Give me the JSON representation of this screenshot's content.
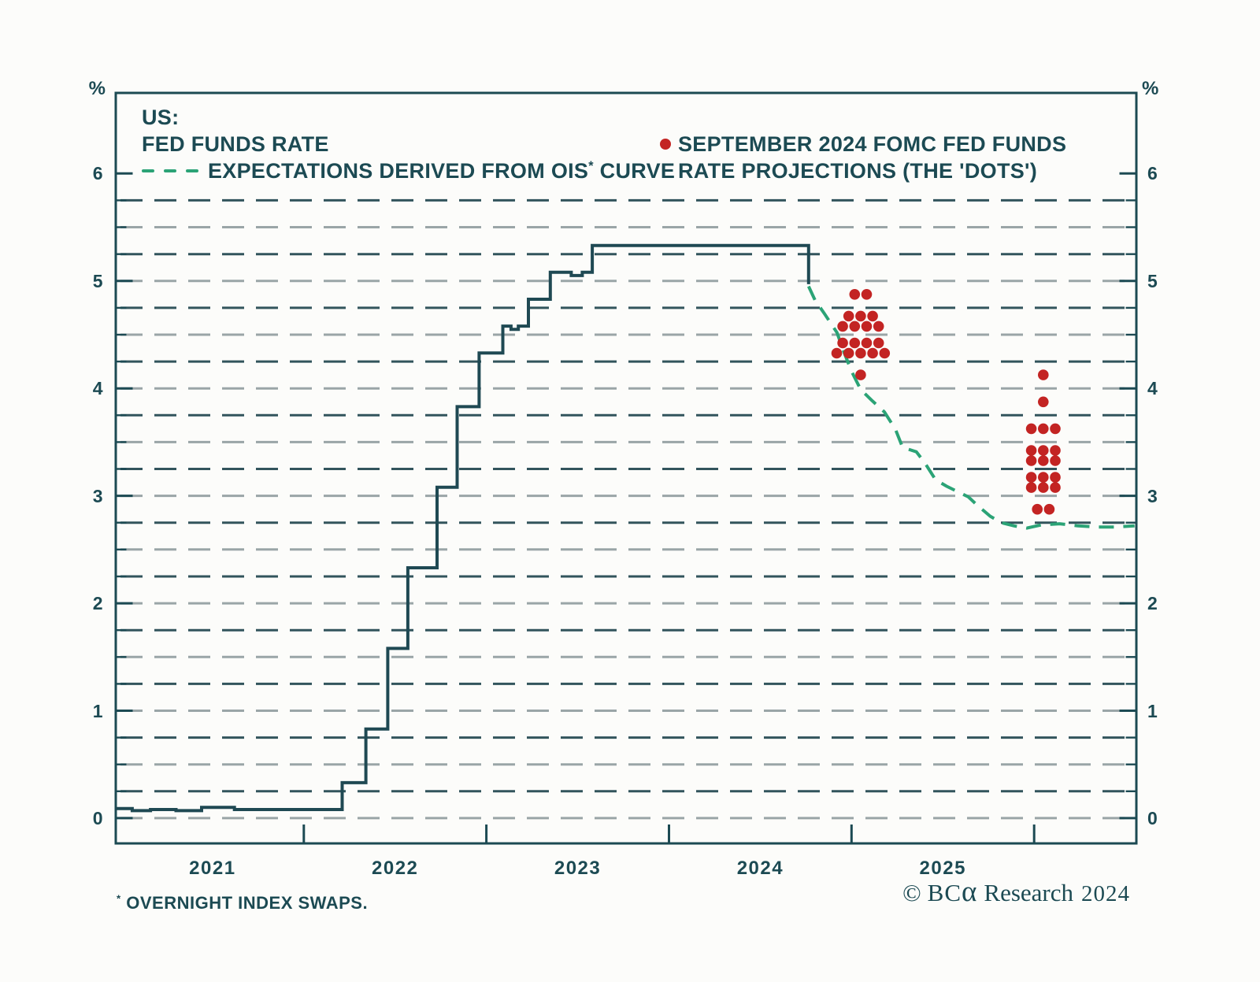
{
  "legend": {
    "region": "US:",
    "series_fed_funds": "FED FUNDS RATE",
    "series_ois_prefix": "EXPECTATIONS DERIVED FROM OIS",
    "series_ois_sup": "*",
    "series_ois_suffix": " CURVE",
    "dots_line1": "SEPTEMBER 2024 FOMC FED FUNDS",
    "dots_line2": "RATE PROJECTIONS (THE 'DOTS')"
  },
  "footnote": {
    "sup": "*",
    "text": " OVERNIGHT INDEX SWAPS."
  },
  "copyright": {
    "symbol": "©",
    "brand_bc": "BC",
    "brand_alpha": "α",
    "text": "Research",
    "year": "2024"
  },
  "colors": {
    "text": "#1c4a53",
    "frame": "#1c4a53",
    "step": "#1f4953",
    "ois": "#2ba376",
    "dots": "#c32423",
    "grid_light": "#9aa5a7",
    "grid_dark": "#32545c",
    "background": "#fcfcfa"
  },
  "chart_data": {
    "type": "line",
    "title": "US: Fed funds rate, OIS-derived expectations and September 2024 FOMC dot projections",
    "unit": "%",
    "xlabel": "",
    "ylabel": "%",
    "xlim": [
      2020.97,
      2026.56
    ],
    "ylim": [
      -0.235,
      6.75
    ],
    "grid": {
      "min": 0,
      "max": 5.75,
      "step": 0.25
    },
    "legend_position": "top",
    "y_label_values": [
      0,
      1,
      2,
      3,
      4,
      5,
      6
    ],
    "y_tick_labels": [
      "0",
      "1",
      "2",
      "3",
      "4",
      "5",
      "6"
    ],
    "x_tick_years": [
      2022,
      2023,
      2024,
      2025,
      2026
    ],
    "x_label_years": [
      2021.5,
      2022.5,
      2023.5,
      2024.5,
      2025.5
    ],
    "x_tick_labels": [
      "2021",
      "2022",
      "2023",
      "2024",
      "2025"
    ],
    "series": [
      {
        "name": "FED FUNDS RATE",
        "style": "step",
        "color": "#1f4953",
        "points": [
          [
            2020.97,
            0.09
          ],
          [
            2021.06,
            0.07
          ],
          [
            2021.16,
            0.08
          ],
          [
            2021.3,
            0.07
          ],
          [
            2021.44,
            0.1
          ],
          [
            2021.62,
            0.08
          ],
          [
            2022.21,
            0.33
          ],
          [
            2022.34,
            0.83
          ],
          [
            2022.46,
            1.58
          ],
          [
            2022.57,
            2.33
          ],
          [
            2022.73,
            3.08
          ],
          [
            2022.84,
            3.83
          ],
          [
            2022.96,
            4.33
          ],
          [
            2023.09,
            4.58
          ],
          [
            2023.135,
            4.55
          ],
          [
            2023.175,
            4.58
          ],
          [
            2023.23,
            4.83
          ],
          [
            2023.35,
            5.08
          ],
          [
            2023.465,
            5.05
          ],
          [
            2023.525,
            5.08
          ],
          [
            2023.58,
            5.33
          ],
          [
            2024.765,
            4.97
          ]
        ]
      },
      {
        "name": "EXPECTATIONS DERIVED FROM OIS* CURVE",
        "style": "dashed",
        "color": "#2ba376",
        "points": [
          [
            2024.765,
            4.95
          ],
          [
            2024.8,
            4.82
          ],
          [
            2024.85,
            4.7
          ],
          [
            2024.92,
            4.52
          ],
          [
            2024.96,
            4.33
          ],
          [
            2025.0,
            4.16
          ],
          [
            2025.05,
            3.99
          ],
          [
            2025.11,
            3.89
          ],
          [
            2025.18,
            3.78
          ],
          [
            2025.24,
            3.62
          ],
          [
            2025.28,
            3.45
          ],
          [
            2025.355,
            3.41
          ],
          [
            2025.4,
            3.31
          ],
          [
            2025.46,
            3.15
          ],
          [
            2025.52,
            3.09
          ],
          [
            2025.58,
            3.04
          ],
          [
            2025.64,
            2.99
          ],
          [
            2025.69,
            2.91
          ],
          [
            2025.76,
            2.81
          ],
          [
            2025.82,
            2.75
          ],
          [
            2025.89,
            2.72
          ],
          [
            2025.96,
            2.7
          ],
          [
            2026.04,
            2.73
          ],
          [
            2026.14,
            2.74
          ],
          [
            2026.24,
            2.72
          ],
          [
            2026.35,
            2.71
          ],
          [
            2026.45,
            2.71
          ],
          [
            2026.55,
            2.72
          ]
        ]
      },
      {
        "name": "SEPTEMBER 2024 FOMC FED FUNDS RATE PROJECTIONS (THE 'DOTS')",
        "style": "dots",
        "color": "#c32423",
        "clusters": [
          {
            "projection_year": "end-2024",
            "x_year": 2025.05,
            "dots": [
              {
                "rate": 4.875,
                "count": 2
              },
              {
                "rate": 4.625,
                "count": 7
              },
              {
                "rate": 4.375,
                "count": 9
              },
              {
                "rate": 4.125,
                "count": 1
              }
            ]
          },
          {
            "projection_year": "end-2025",
            "x_year": 2026.05,
            "dots": [
              {
                "rate": 4.125,
                "count": 1
              },
              {
                "rate": 3.875,
                "count": 1
              },
              {
                "rate": 3.625,
                "count": 3
              },
              {
                "rate": 3.375,
                "count": 6
              },
              {
                "rate": 3.125,
                "count": 6
              },
              {
                "rate": 2.875,
                "count": 2
              }
            ]
          }
        ]
      }
    ]
  }
}
